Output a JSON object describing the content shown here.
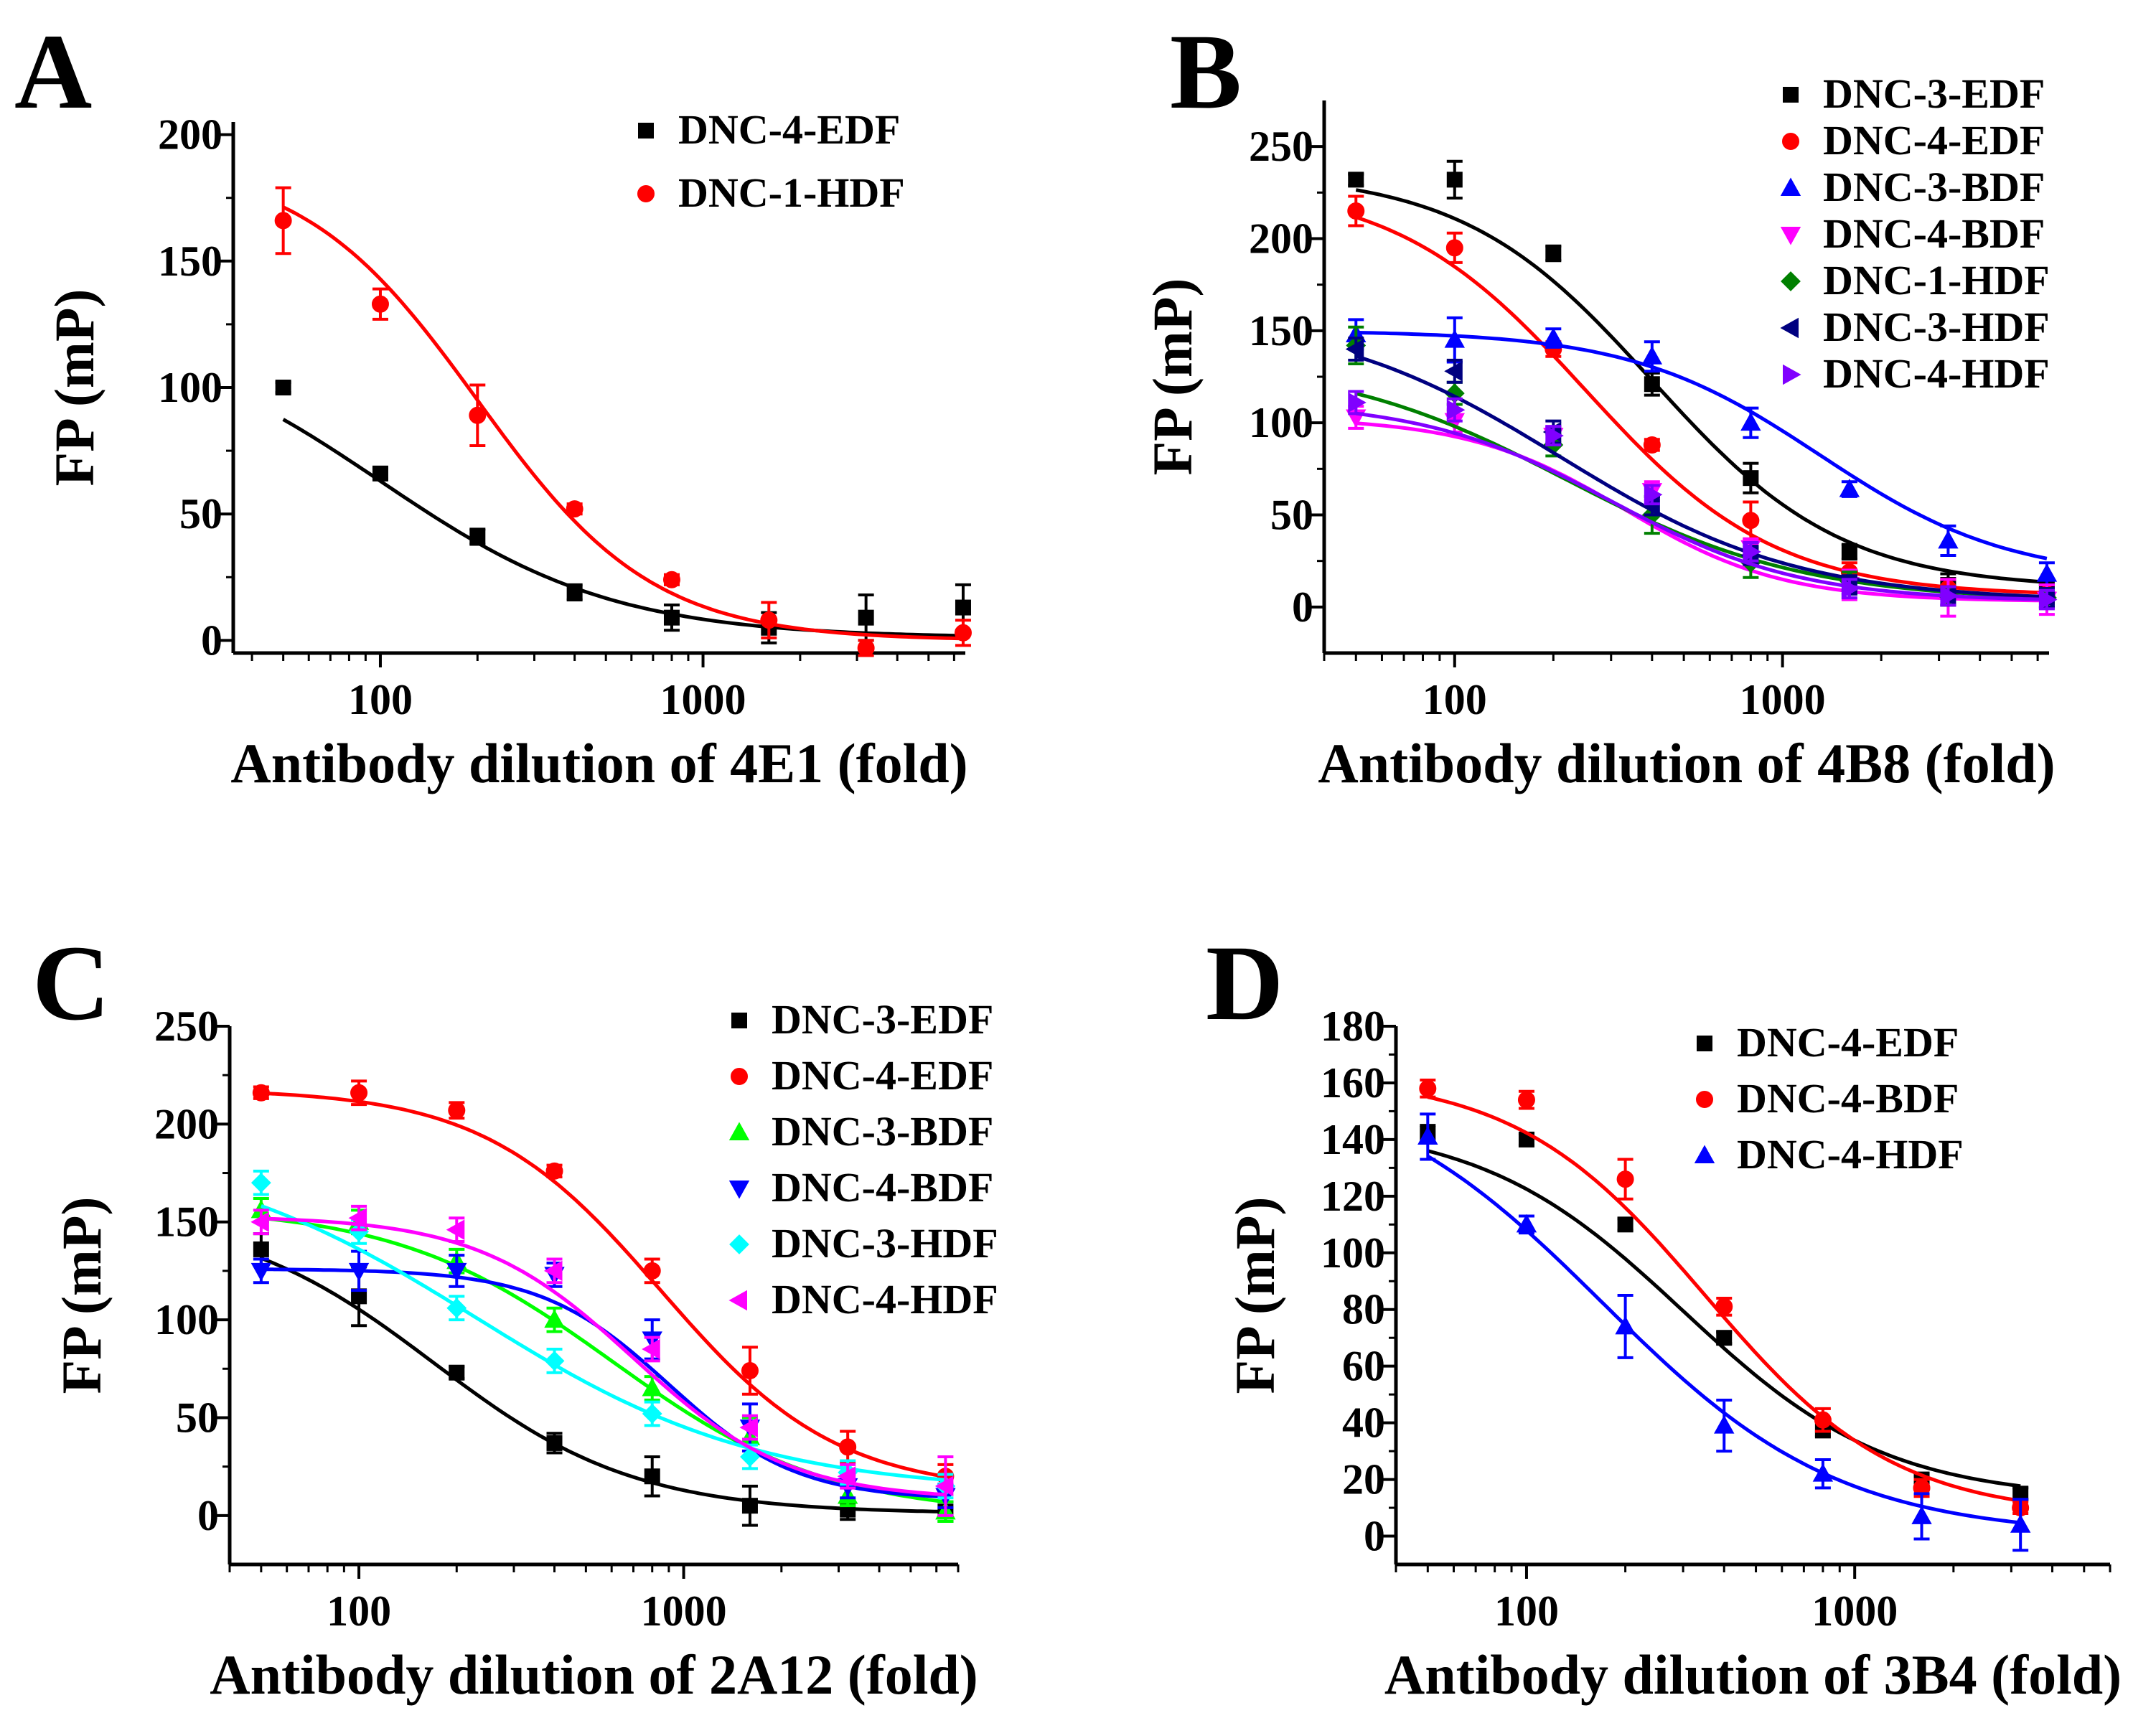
{
  "figure": {
    "panels": [
      {
        "id": "A",
        "letter": "A",
        "chart_data": {
          "type": "scatter",
          "title": "",
          "xlabel": "Antibody dilution of 4E1 (fold)",
          "ylabel": "FP (mP)",
          "xscale": "log",
          "xlim": [
            35,
            6500
          ],
          "ylim": [
            -5,
            205
          ],
          "xticks": [
            100,
            1000
          ],
          "xticklabels": [
            "100",
            "1000"
          ],
          "yticks": [
            0,
            50,
            100,
            150,
            200
          ],
          "yticklabels": [
            "0",
            "50",
            "100",
            "150",
            "200"
          ],
          "legend": "top-right",
          "x": [
            50,
            100,
            200,
            400,
            800,
            1600,
            3200,
            6400
          ],
          "series": [
            {
              "name": "DNC-4-EDF",
              "color": "#000000",
              "marker": "square",
              "values": [
                100,
                66,
                41,
                19,
                9,
                5,
                9,
                13
              ],
              "errors": [
                2,
                2,
                3,
                3,
                5,
                6,
                9,
                9
              ],
              "fit": {
                "top": 125,
                "bottom": 1,
                "ic50": 100,
                "hill": 1.2
              }
            },
            {
              "name": "DNC-1-HDF",
              "color": "#ff0000",
              "marker": "circle",
              "values": [
                166,
                133,
                89,
                52,
                24,
                8,
                -3,
                3
              ],
              "errors": [
                13,
                6,
                12,
                2,
                2,
                7,
                3,
                5
              ],
              "fit": {
                "top": 190,
                "bottom": 0,
                "ic50": 200,
                "hill": 1.6
              }
            }
          ]
        }
      },
      {
        "id": "B",
        "letter": "B",
        "chart_data": {
          "type": "scatter",
          "title": "",
          "xlabel": "Antibody dilution of 4B8 (fold)",
          "ylabel": "FP (mP)",
          "xscale": "log",
          "xlim": [
            40,
            6500
          ],
          "ylim": [
            -25,
            275
          ],
          "xticks": [
            100,
            1000
          ],
          "xticklabels": [
            "100",
            "1000"
          ],
          "yticks": [
            0,
            50,
            100,
            150,
            200,
            250
          ],
          "yticklabels": [
            "0",
            "50",
            "100",
            "150",
            "200",
            "250"
          ],
          "legend": "top-right",
          "x": [
            50,
            100,
            200,
            400,
            800,
            1600,
            3200,
            6400
          ],
          "series": [
            {
              "name": "DNC-3-EDF",
              "color": "#000000",
              "marker": "square",
              "values": [
                232,
                232,
                192,
                121,
                70,
                30,
                12,
                10
              ],
              "errors": [
                3,
                10,
                4,
                6,
                8,
                4,
                6,
                5
              ],
              "fit": {
                "top": 236,
                "bottom": 10,
                "ic50": 400,
                "hill": 1.5
              }
            },
            {
              "name": "DNC-4-EDF",
              "color": "#ff0000",
              "marker": "circle",
              "values": [
                215,
                195,
                140,
                88,
                47,
                19,
                10,
                7
              ],
              "errors": [
                8,
                8,
                4,
                3,
                10,
                5,
                5,
                5
              ],
              "fit": {
                "top": 230,
                "bottom": 6,
                "ic50": 250,
                "hill": 1.5
              }
            },
            {
              "name": "DNC-3-BDF",
              "color": "#0000ff",
              "marker": "triangle-up",
              "values": [
                148,
                145,
                146,
                136,
                100,
                64,
                36,
                18
              ],
              "errors": [
                8,
                12,
                5,
                8,
                8,
                4,
                8,
                6
              ],
              "fit": {
                "top": 150,
                "bottom": 15,
                "ic50": 1300,
                "hill": 1.5
              }
            },
            {
              "name": "DNC-4-BDF",
              "color": "#ff00ff",
              "marker": "triangle-down",
              "values": [
                103,
                101,
                93,
                63,
                32,
                12,
                5,
                4
              ],
              "errors": [
                6,
                6,
                5,
                5,
                5,
                8,
                10,
                8
              ],
              "fit": {
                "top": 103,
                "bottom": 3,
                "ic50": 330,
                "hill": 1.8
              }
            },
            {
              "name": "DNC-1-HDF",
              "color": "#008000",
              "marker": "diamond",
              "values": [
                142,
                116,
                88,
                50,
                24,
                14,
                6,
                5
              ],
              "errors": [
                10,
                6,
                6,
                10,
                8,
                5,
                5,
                5
              ],
              "fit": {
                "top": 135,
                "bottom": 3,
                "ic50": 220,
                "hill": 1.2
              }
            },
            {
              "name": "DNC-3-HDF",
              "color": "#000080",
              "marker": "triangle-left",
              "values": [
                140,
                128,
                95,
                55,
                28,
                12,
                6,
                5
              ],
              "errors": [
                6,
                6,
                6,
                5,
                5,
                5,
                5,
                5
              ],
              "fit": {
                "top": 160,
                "bottom": 3,
                "ic50": 210,
                "hill": 1.2
              }
            },
            {
              "name": "DNC-4-HDF",
              "color": "#8000ff",
              "marker": "triangle-right",
              "values": [
                111,
                107,
                93,
                61,
                30,
                10,
                6,
                4
              ],
              "errors": [
                6,
                6,
                5,
                5,
                5,
                5,
                5,
                5
              ],
              "fit": {
                "top": 112,
                "bottom": 3,
                "ic50": 300,
                "hill": 1.5
              }
            }
          ]
        }
      },
      {
        "id": "C",
        "letter": "C",
        "chart_data": {
          "type": "scatter",
          "title": "",
          "xlabel": "Antibody dilution of 2A12 (fold)",
          "ylabel": "FP (mP)",
          "xscale": "log",
          "xlim": [
            40,
            7000
          ],
          "ylim": [
            -25,
            250
          ],
          "xticks": [
            100,
            1000
          ],
          "xticklabels": [
            "100",
            "1000"
          ],
          "yticks": [
            0,
            50,
            100,
            150,
            200,
            250
          ],
          "yticklabels": [
            "0",
            "50",
            "100",
            "150",
            "200",
            "250"
          ],
          "legend": "top-right",
          "x": [
            50,
            100,
            200,
            400,
            800,
            1600,
            3200,
            6400
          ],
          "series": [
            {
              "name": "DNC-3-EDF",
              "color": "#000000",
              "marker": "square",
              "values": [
                136,
                112,
                73,
                37,
                20,
                5,
                3,
                2
              ],
              "errors": [
                8,
                15,
                3,
                5,
                10,
                10,
                5,
                5
              ],
              "fit": {
                "top": 155,
                "bottom": 1,
                "ic50": 170,
                "hill": 1.4
              }
            },
            {
              "name": "DNC-4-EDF",
              "color": "#ff0000",
              "marker": "circle",
              "values": [
                216,
                216,
                207,
                176,
                125,
                74,
                35,
                20
              ],
              "errors": [
                3,
                6,
                4,
                3,
                6,
                12,
                8,
                6
              ],
              "fit": {
                "top": 218,
                "bottom": 12,
                "ic50": 850,
                "hill": 1.6
              }
            },
            {
              "name": "DNC-3-BDF",
              "color": "#00ff00",
              "marker": "triangle-up",
              "values": [
                156,
                150,
                130,
                100,
                65,
                40,
                10,
                2
              ],
              "errors": [
                6,
                6,
                6,
                6,
                6,
                10,
                5,
                5
              ],
              "fit": {
                "top": 158,
                "bottom": 0,
                "ic50": 600,
                "hill": 1.3
              }
            },
            {
              "name": "DNC-4-BDF",
              "color": "#0000ff",
              "marker": "triangle-down",
              "values": [
                125,
                125,
                125,
                123,
                90,
                45,
                15,
                10
              ],
              "errors": [
                6,
                10,
                8,
                6,
                10,
                12,
                6,
                6
              ],
              "fit": {
                "top": 126,
                "bottom": 8,
                "ic50": 900,
                "hill": 2.2
              }
            },
            {
              "name": "DNC-3-HDF",
              "color": "#00ffff",
              "marker": "diamond",
              "values": [
                170,
                145,
                106,
                79,
                52,
                30,
                22,
                15
              ],
              "errors": [
                6,
                6,
                6,
                6,
                6,
                6,
                6,
                6
              ],
              "fit": {
                "top": 190,
                "bottom": 12,
                "ic50": 230,
                "hill": 1.0
              }
            },
            {
              "name": "DNC-4-HDF",
              "color": "#ff00ff",
              "marker": "triangle-left",
              "values": [
                150,
                152,
                146,
                125,
                85,
                45,
                20,
                15
              ],
              "errors": [
                6,
                6,
                6,
                6,
                6,
                6,
                6,
                15
              ],
              "fit": {
                "top": 153,
                "bottom": 8,
                "ic50": 700,
                "hill": 1.8
              }
            }
          ]
        }
      },
      {
        "id": "D",
        "letter": "D",
        "chart_data": {
          "type": "scatter",
          "title": "",
          "xlabel": "Antibody dilution of 3B4 (fold)",
          "ylabel": "FP (mP)",
          "xscale": "log",
          "xlim": [
            40,
            6000
          ],
          "ylim": [
            -10,
            180
          ],
          "xticks": [
            100,
            1000
          ],
          "xticklabels": [
            "100",
            "1000"
          ],
          "yticks": [
            0,
            20,
            40,
            60,
            80,
            100,
            120,
            140,
            160,
            180
          ],
          "yticklabels": [
            "0",
            "20",
            "40",
            "60",
            "80",
            "100",
            "120",
            "140",
            "160",
            "180"
          ],
          "legend": "top-right",
          "x": [
            50,
            100,
            200,
            400,
            800,
            1600,
            3200
          ],
          "series": [
            {
              "name": "DNC-4-EDF",
              "color": "#000000",
              "marker": "square",
              "values": [
                142,
                140,
                110,
                70,
                38,
                20,
                15
              ],
              "errors": [
                3,
                2,
                2,
                2,
                3,
                2,
                2
              ],
              "fit": {
                "top": 146,
                "bottom": 13,
                "ic50": 300,
                "hill": 1.4
              }
            },
            {
              "name": "DNC-4-BDF",
              "color": "#ff0000",
              "marker": "circle",
              "values": [
                158,
                154,
                126,
                81,
                41,
                17,
                10
              ],
              "errors": [
                3,
                3,
                7,
                3,
                4,
                3,
                2
              ],
              "fit": {
                "top": 163,
                "bottom": 7,
                "ic50": 350,
                "hill": 1.5
              }
            },
            {
              "name": "DNC-4-HDF",
              "color": "#0000ff",
              "marker": "triangle-up",
              "values": [
                141,
                110,
                74,
                39,
                22,
                7,
                4
              ],
              "errors": [
                8,
                3,
                11,
                9,
                5,
                8,
                9
              ],
              "fit": {
                "top": 165,
                "bottom": 0,
                "ic50": 170,
                "hill": 1.2
              }
            }
          ]
        }
      }
    ]
  }
}
